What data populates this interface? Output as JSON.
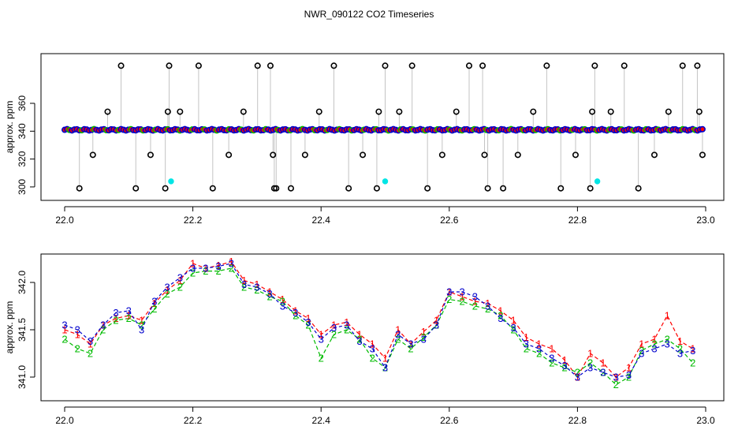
{
  "title": "NWR_090122  CO2 Timeseries",
  "colors": {
    "series1": "#ff0000",
    "series2": "#00bb00",
    "series3": "#0000cc",
    "flagged": "#00e5e5",
    "outlier": "#000000",
    "stem": "#888888"
  },
  "chart_data": [
    {
      "type": "scatter",
      "name": "raw",
      "ylabel": "approx. ppm",
      "xlim": [
        22.0,
        23.0
      ],
      "ylim": [
        296,
        390
      ],
      "xticks": [
        "22.0",
        "22.2",
        "22.4",
        "22.6",
        "22.8",
        "23.0"
      ],
      "yticks": [
        "300",
        "320",
        "340",
        "360"
      ],
      "baseline": 341,
      "outliers_x": [
        22.023,
        22.044,
        22.067,
        22.088,
        22.111,
        22.134,
        22.157,
        22.161,
        22.163,
        22.18,
        22.209,
        22.231,
        22.256,
        22.279,
        22.301,
        22.321,
        22.325,
        22.327,
        22.33,
        22.353,
        22.375,
        22.397,
        22.42,
        22.443,
        22.465,
        22.487,
        22.49,
        22.5,
        22.522,
        22.542,
        22.566,
        22.589,
        22.611,
        22.631,
        22.652,
        22.655,
        22.66,
        22.684,
        22.707,
        22.731,
        22.752,
        22.774,
        22.797,
        22.82,
        22.823,
        22.827,
        22.852,
        22.873,
        22.895,
        22.92,
        22.942,
        22.964,
        22.987,
        22.99,
        22.995
      ],
      "outliers_y": [
        299,
        323,
        354,
        387,
        299,
        323,
        299,
        354,
        387,
        354,
        387,
        299,
        323,
        354,
        387,
        387,
        323,
        299,
        299,
        299,
        323,
        354,
        387,
        299,
        323,
        299,
        354,
        387,
        354,
        387,
        299,
        323,
        354,
        387,
        387,
        323,
        299,
        299,
        323,
        354,
        387,
        299,
        323,
        299,
        354,
        387,
        354,
        387,
        299,
        323,
        354,
        387,
        387,
        354,
        323
      ],
      "flagged_x": [
        22.166,
        22.5,
        22.831
      ],
      "flagged_y": [
        304,
        304,
        304
      ]
    },
    {
      "type": "line",
      "ylabel": "approx. ppm",
      "xlim": [
        22.0,
        23.0
      ],
      "ylim": [
        340.75,
        342.3
      ],
      "xticks": [
        "22.0",
        "22.2",
        "22.4",
        "22.6",
        "22.8",
        "23.0"
      ],
      "yticks": [
        "341.0",
        "341.5",
        "342.0"
      ],
      "series_labels": [
        "1",
        "2",
        "3"
      ],
      "x": [
        22.0,
        22.02,
        22.04,
        22.06,
        22.08,
        22.1,
        22.12,
        22.14,
        22.16,
        22.18,
        22.2,
        22.22,
        22.24,
        22.26,
        22.28,
        22.3,
        22.32,
        22.34,
        22.36,
        22.38,
        22.4,
        22.42,
        22.44,
        22.46,
        22.48,
        22.5,
        22.52,
        22.54,
        22.56,
        22.58,
        22.6,
        22.62,
        22.64,
        22.66,
        22.68,
        22.7,
        22.72,
        22.74,
        22.76,
        22.78,
        22.8,
        22.82,
        22.84,
        22.86,
        22.88,
        22.9,
        22.92,
        22.94,
        22.96,
        22.98
      ],
      "series": [
        {
          "values": [
            341.5,
            341.45,
            341.35,
            341.55,
            341.62,
            341.65,
            341.6,
            341.78,
            341.92,
            342.02,
            342.2,
            342.15,
            342.18,
            342.22,
            342.02,
            341.98,
            341.9,
            341.82,
            341.7,
            341.62,
            341.45,
            341.55,
            341.58,
            341.45,
            341.35,
            341.2,
            341.5,
            341.35,
            341.48,
            341.6,
            341.9,
            341.85,
            341.8,
            341.78,
            341.7,
            341.6,
            341.42,
            341.35,
            341.3,
            341.18,
            341.0,
            341.25,
            341.15,
            341.0,
            341.1,
            341.35,
            341.4,
            341.65,
            341.38,
            341.3
          ]
        },
        {
          "values": [
            341.4,
            341.3,
            341.25,
            341.5,
            341.6,
            341.62,
            341.55,
            341.72,
            341.88,
            341.95,
            342.1,
            342.12,
            342.12,
            342.15,
            341.95,
            341.92,
            341.85,
            341.8,
            341.65,
            341.55,
            341.2,
            341.45,
            341.5,
            341.4,
            341.2,
            341.1,
            341.4,
            341.3,
            341.42,
            341.55,
            341.82,
            341.8,
            341.75,
            341.72,
            341.65,
            341.5,
            341.3,
            341.25,
            341.15,
            341.1,
            341.05,
            341.15,
            341.05,
            340.92,
            341.0,
            341.28,
            341.35,
            341.4,
            341.3,
            341.15
          ]
        },
        {
          "values": [
            341.55,
            341.5,
            341.38,
            341.55,
            341.68,
            341.7,
            341.5,
            341.8,
            341.95,
            342.05,
            342.15,
            342.15,
            342.17,
            342.2,
            341.98,
            341.95,
            341.88,
            341.75,
            341.68,
            341.58,
            341.4,
            341.52,
            341.55,
            341.38,
            341.3,
            341.1,
            341.45,
            341.35,
            341.4,
            341.55,
            341.9,
            341.9,
            341.85,
            341.75,
            341.62,
            341.52,
            341.35,
            341.3,
            341.2,
            341.12,
            341.0,
            341.1,
            341.05,
            341.0,
            341.02,
            341.25,
            341.3,
            341.35,
            341.25,
            341.28
          ]
        }
      ]
    }
  ]
}
